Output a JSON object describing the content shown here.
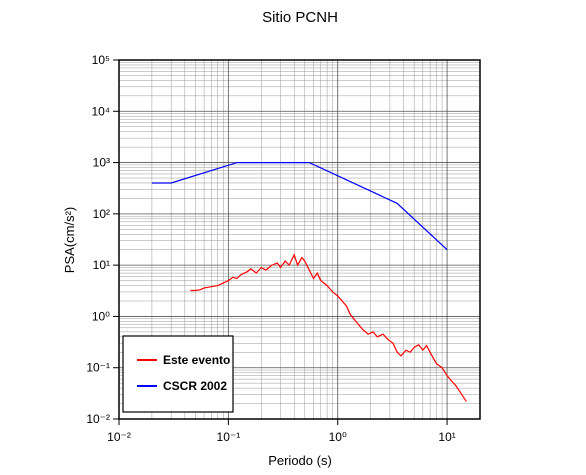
{
  "chart_data": {
    "type": "line",
    "title": "Sitio PCNH",
    "xlabel": "Periodo (s)",
    "ylabel": "PSA(cm/s²)",
    "xscale": "log",
    "yscale": "log",
    "grid": true,
    "minor_grid": true,
    "legend": "lower left",
    "xlim": [
      0.01,
      20
    ],
    "ylim": [
      0.01,
      100000
    ],
    "xticks": [
      {
        "value": 0.01,
        "label": "10⁻²"
      },
      {
        "value": 0.1,
        "label": "10⁻¹"
      },
      {
        "value": 1,
        "label": "10⁰"
      },
      {
        "value": 10,
        "label": "10¹"
      }
    ],
    "yticks": [
      {
        "value": 0.01,
        "label": "10⁻²"
      },
      {
        "value": 0.1,
        "label": "10⁻¹"
      },
      {
        "value": 1,
        "label": "10⁰"
      },
      {
        "value": 10,
        "label": "10¹"
      },
      {
        "value": 100,
        "label": "10²"
      },
      {
        "value": 1000,
        "label": "10³"
      },
      {
        "value": 10000,
        "label": "10⁴"
      },
      {
        "value": 100000,
        "label": "10⁵"
      }
    ],
    "series": [
      {
        "name": "Este evento",
        "color": "#ff0000",
        "x": [
          0.045,
          0.05,
          0.055,
          0.06,
          0.07,
          0.08,
          0.09,
          0.1,
          0.11,
          0.12,
          0.13,
          0.15,
          0.16,
          0.18,
          0.2,
          0.22,
          0.25,
          0.28,
          0.3,
          0.33,
          0.36,
          0.4,
          0.43,
          0.47,
          0.5,
          0.55,
          0.6,
          0.65,
          0.7,
          0.8,
          0.9,
          1.0,
          1.1,
          1.2,
          1.3,
          1.5,
          1.7,
          1.9,
          2.1,
          2.3,
          2.6,
          2.9,
          3.2,
          3.5,
          3.8,
          4.2,
          4.6,
          5.0,
          5.5,
          6,
          6.5,
          7,
          8,
          9,
          10,
          11,
          12,
          13,
          15
        ],
        "values": [
          3.2,
          3.2,
          3.3,
          3.6,
          3.8,
          4.0,
          4.5,
          5.0,
          5.8,
          5.5,
          6.5,
          7.5,
          8.5,
          7.0,
          9.0,
          8.0,
          10,
          11,
          9,
          12,
          10,
          16,
          10,
          14,
          12,
          8,
          5.5,
          7,
          5,
          4,
          3.0,
          2.5,
          2.0,
          1.6,
          1.1,
          0.75,
          0.55,
          0.45,
          0.5,
          0.4,
          0.45,
          0.35,
          0.3,
          0.2,
          0.17,
          0.22,
          0.2,
          0.25,
          0.28,
          0.22,
          0.27,
          0.2,
          0.12,
          0.1,
          0.07,
          0.055,
          0.045,
          0.035,
          0.022
        ]
      },
      {
        "name": "CSCR 2002",
        "color": "#0000ff",
        "x": [
          0.02,
          0.03,
          0.12,
          0.55,
          3.5,
          10
        ],
        "values": [
          400,
          400,
          1000,
          1000,
          160,
          20
        ]
      }
    ]
  }
}
